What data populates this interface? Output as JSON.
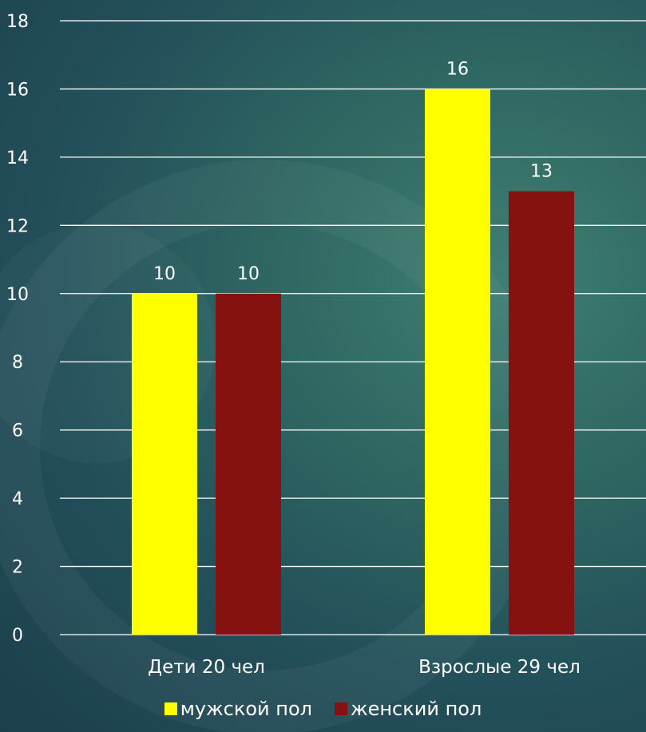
{
  "colors": {
    "male": "#ffff00",
    "female": "#861111",
    "grid": "#ffffff",
    "text": "#ffffff"
  },
  "chart_data": {
    "type": "bar",
    "categories": [
      "Дети 20 чел",
      "Взрослые 29 чел"
    ],
    "series": [
      {
        "name": "мужской пол",
        "values": [
          10,
          16
        ]
      },
      {
        "name": "женский пол",
        "values": [
          10,
          13
        ]
      }
    ],
    "ylim": [
      0,
      18
    ],
    "yticks": [
      0,
      2,
      4,
      6,
      8,
      10,
      12,
      14,
      16,
      18
    ],
    "grid": true,
    "data_labels": true,
    "legend_position": "bottom"
  }
}
